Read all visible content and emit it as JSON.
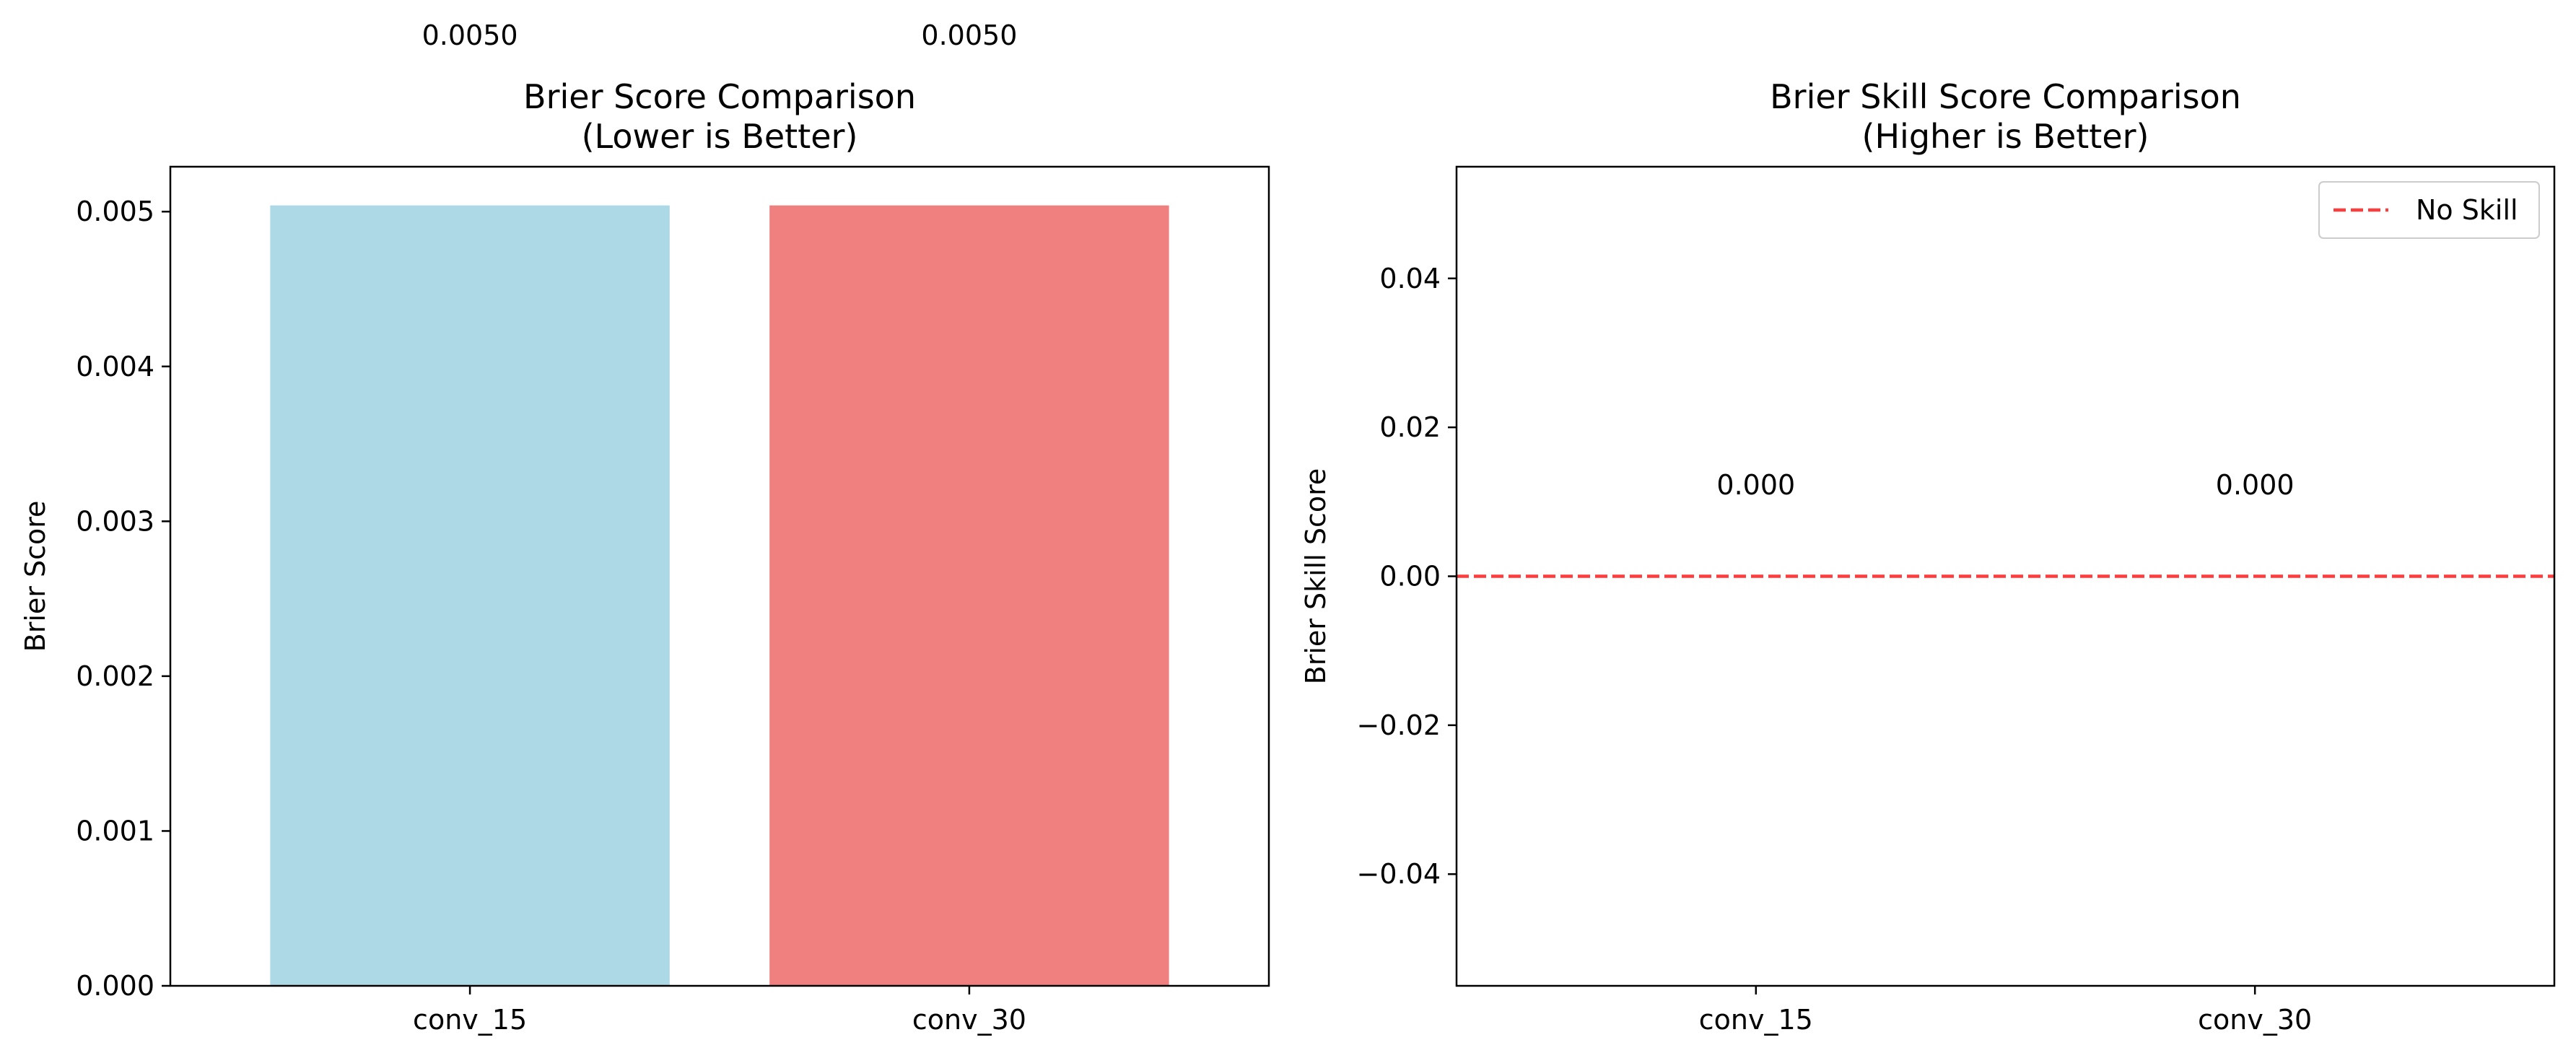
{
  "chart_data": [
    {
      "type": "bar",
      "title": "Brier Score Comparison\n(Lower is Better)",
      "categories": [
        "conv_15",
        "conv_30"
      ],
      "values": [
        0.00504,
        0.00504
      ],
      "value_labels": [
        "0.0050",
        "0.0050"
      ],
      "bar_colors": [
        "#add8e6",
        "#f08080"
      ],
      "xlabel": "",
      "ylabel": "Brier Score",
      "ylim": [
        0,
        0.00529
      ],
      "yticks": [
        0,
        0.001,
        0.002,
        0.003,
        0.004,
        0.005
      ],
      "ytick_labels": [
        "0.000",
        "0.001",
        "0.002",
        "0.003",
        "0.004",
        "0.005"
      ],
      "grid": false
    },
    {
      "type": "bar",
      "title": "Brier Skill Score Comparison\n(Higher is Better)",
      "categories": [
        "conv_15",
        "conv_30"
      ],
      "values": [
        0.0,
        0.0
      ],
      "value_labels": [
        "0.000",
        "0.000"
      ],
      "bar_colors": [
        "#add8e6",
        "#f08080"
      ],
      "xlabel": "",
      "ylabel": "Brier Skill Score",
      "ylim": [
        -0.055,
        0.055
      ],
      "yticks": [
        -0.04,
        -0.02,
        0.0,
        0.02,
        0.04
      ],
      "ytick_labels": [
        "−0.04",
        "−0.02",
        "0.00",
        "0.02",
        "0.04"
      ],
      "reference_line": {
        "y": 0,
        "label": "No Skill",
        "color": "#ff0000",
        "style": "dashed"
      },
      "legend": {
        "position": "top-right",
        "entries": [
          "No Skill"
        ]
      },
      "grid": false
    }
  ]
}
